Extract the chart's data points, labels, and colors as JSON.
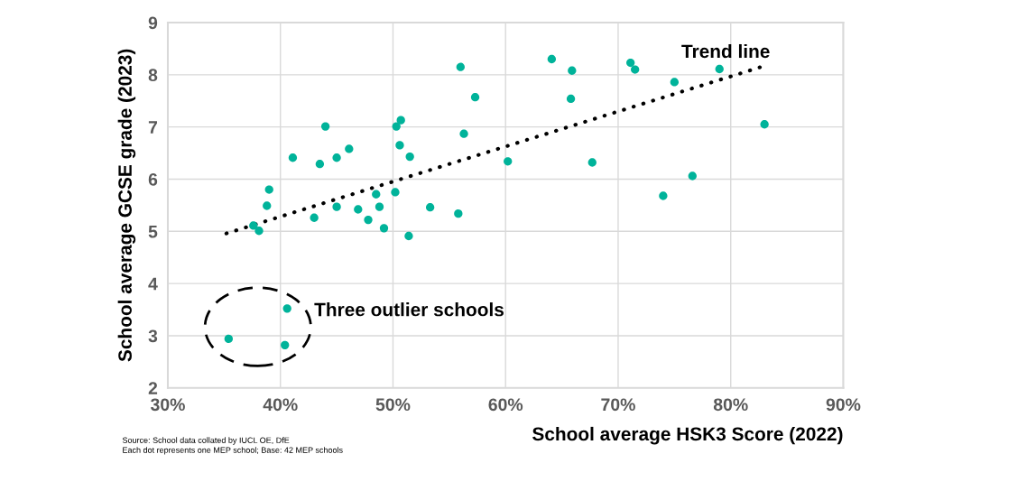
{
  "chart_data": {
    "type": "scatter",
    "xlabel": "School average HSK3 Score (2022)",
    "ylabel": "School average GCSE grade (2023)",
    "xlim": [
      30,
      90
    ],
    "xticks": [
      {
        "value": 30,
        "label": "30%"
      },
      {
        "value": 40,
        "label": "40%"
      },
      {
        "value": 50,
        "label": "50%"
      },
      {
        "value": 60,
        "label": "60%"
      },
      {
        "value": 70,
        "label": "70%"
      },
      {
        "value": 80,
        "label": "80%"
      },
      {
        "value": 90,
        "label": "90%"
      }
    ],
    "ylim": [
      2,
      9
    ],
    "yticks": [
      2,
      3,
      4,
      5,
      6,
      7,
      8,
      9
    ],
    "grid": true,
    "legend": false,
    "marker": "circle",
    "series": [
      {
        "color": "#00b39a",
        "x": [
          35.4,
          40.6,
          40.4,
          37.6,
          38.1,
          38.8,
          39.0,
          41.1,
          44.0,
          43.5,
          45.0,
          46.1,
          43.0,
          45.0,
          46.9,
          47.8,
          48.5,
          48.8,
          49.2,
          50.2,
          51.4,
          50.3,
          50.7,
          50.6,
          51.5,
          53.3,
          56.0,
          57.3,
          56.3,
          60.2,
          55.8,
          67.7,
          64.1,
          65.9,
          65.8,
          71.1,
          71.5,
          75.0,
          74.0,
          76.6,
          79.0,
          83.0
        ],
        "values": [
          2.94,
          3.52,
          2.82,
          5.11,
          5.01,
          5.49,
          5.8,
          6.41,
          7.01,
          6.29,
          6.41,
          6.58,
          5.26,
          5.47,
          5.42,
          5.22,
          5.71,
          5.47,
          5.06,
          5.75,
          4.91,
          7.01,
          7.13,
          6.65,
          6.43,
          5.46,
          8.15,
          7.57,
          6.87,
          6.34,
          5.34,
          6.32,
          8.3,
          8.08,
          7.54,
          8.23,
          8.1,
          7.86,
          5.68,
          6.06,
          8.11,
          7.05
        ]
      },
      {
        "type": "line",
        "color": "#000000",
        "line_style": "dotted",
        "marker": "none",
        "x": [
          35.2,
          83.0
        ],
        "values": [
          4.96,
          8.17
        ]
      }
    ],
    "annotations": [
      {
        "text": "Trend line",
        "x": 83.0,
        "y": 8.17
      },
      "Three outlier schools",
      "Source: School data collated by IUCL OE, DfE",
      "Each dot represents one MEP school; Base: 42 MEP schools"
    ]
  }
}
